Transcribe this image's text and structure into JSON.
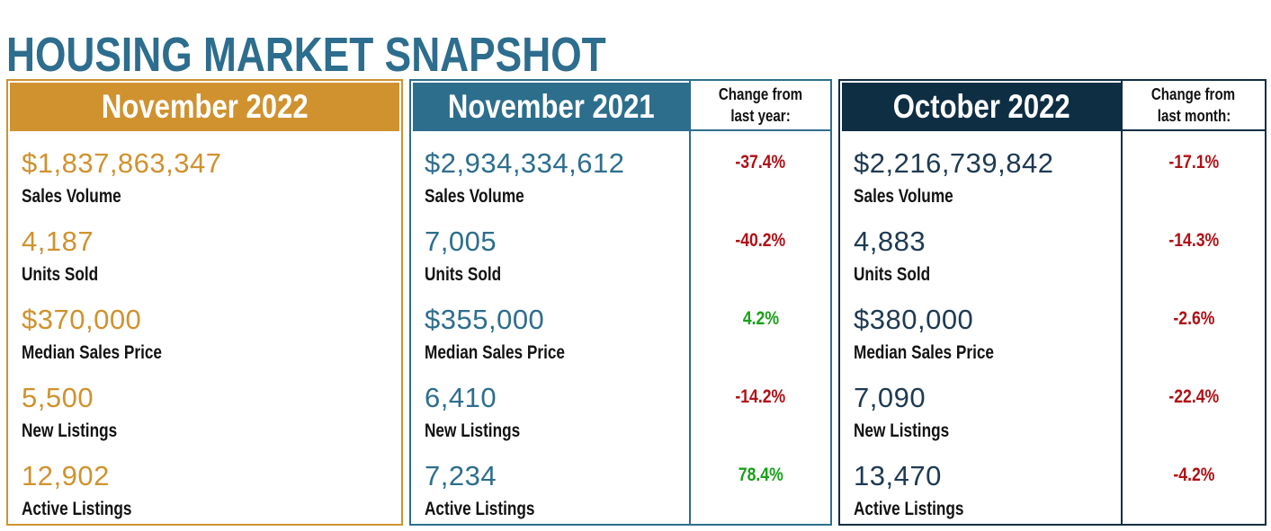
{
  "title": "HOUSING MARKET SNAPSHOT",
  "chart_data": {
    "type": "table",
    "title": "HOUSING MARKET SNAPSHOT",
    "metrics": [
      "Sales Volume",
      "Units Sold",
      "Median Sales Price",
      "New Listings",
      "Active Listings"
    ],
    "colors": {
      "title": "#2d6d8e",
      "positive": "#18a018",
      "negative": "#b01015",
      "label": "#121212"
    },
    "panels": [
      {
        "header": "November 2022",
        "accent": "#d0922f",
        "value_color": "#d0922f",
        "change_header_lines": [],
        "rows": [
          {
            "label": "Sales Volume",
            "value": "$1,837,863,347"
          },
          {
            "label": "Units Sold",
            "value": "4,187"
          },
          {
            "label": "Median Sales Price",
            "value": "$370,000"
          },
          {
            "label": "New Listings",
            "value": "5,500"
          },
          {
            "label": "Active Listings",
            "value": "12,902"
          }
        ]
      },
      {
        "header": "November 2021",
        "accent": "#2d6e8c",
        "value_color": "#2d6e8e",
        "change_header_lines": [
          "Change from",
          "last year:"
        ],
        "rows": [
          {
            "label": "Sales Volume",
            "value": "$2,934,334,612",
            "change": "-37.4%",
            "trend": "negative"
          },
          {
            "label": "Units Sold",
            "value": "7,005",
            "change": "-40.2%",
            "trend": "negative"
          },
          {
            "label": "Median Sales Price",
            "value": "$355,000",
            "change": "4.2%",
            "trend": "positive"
          },
          {
            "label": "New Listings",
            "value": "6,410",
            "change": "-14.2%",
            "trend": "negative"
          },
          {
            "label": "Active Listings",
            "value": "7,234",
            "change": "78.4%",
            "trend": "positive"
          }
        ]
      },
      {
        "header": "October 2022",
        "accent": "#0e2e44",
        "value_color": "#1e3a52",
        "change_header_lines": [
          "Change from",
          "last month:"
        ],
        "rows": [
          {
            "label": "Sales Volume",
            "value": "$2,216,739,842",
            "change": "-17.1%",
            "trend": "negative"
          },
          {
            "label": "Units Sold",
            "value": "4,883",
            "change": "-14.3%",
            "trend": "negative"
          },
          {
            "label": "Median Sales Price",
            "value": "$380,000",
            "change": "-2.6%",
            "trend": "negative"
          },
          {
            "label": "New Listings",
            "value": "7,090",
            "change": "-22.4%",
            "trend": "negative"
          },
          {
            "label": "Active Listings",
            "value": "13,470",
            "change": "-4.2%",
            "trend": "negative"
          }
        ]
      }
    ]
  }
}
